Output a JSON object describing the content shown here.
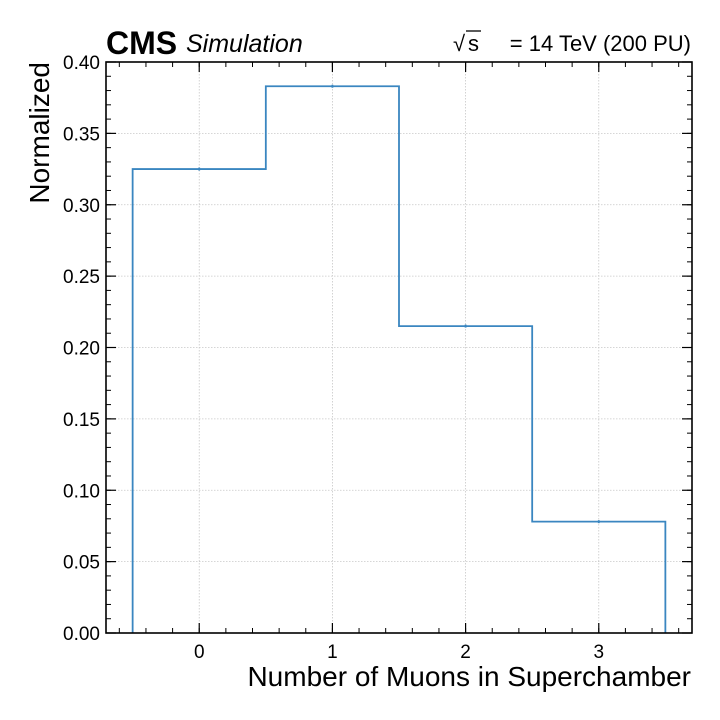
{
  "header": {
    "experiment": "CMS",
    "status": "Simulation",
    "sqrt_symbol": "√",
    "energy_var": "s",
    "energy_text": "= 14 TeV (200 PU)"
  },
  "chart_data": {
    "type": "bar",
    "style": "step-histogram",
    "xlabel": "Number of Muons in Superchamber",
    "ylabel": "Normalized",
    "categories": [
      0,
      1,
      2,
      3
    ],
    "bin_edges": [
      -0.5,
      0.5,
      1.5,
      2.5,
      3.5
    ],
    "values": [
      0.325,
      0.383,
      0.215,
      0.078
    ],
    "xlim": [
      -0.7,
      3.7
    ],
    "ylim": [
      0,
      0.4
    ],
    "xticks": [
      "0",
      "1",
      "2",
      "3"
    ],
    "yticks": [
      "0.00",
      "0.05",
      "0.10",
      "0.15",
      "0.20",
      "0.25",
      "0.30",
      "0.35",
      "0.40"
    ],
    "grid": true,
    "line_color": "#3a86c0"
  }
}
